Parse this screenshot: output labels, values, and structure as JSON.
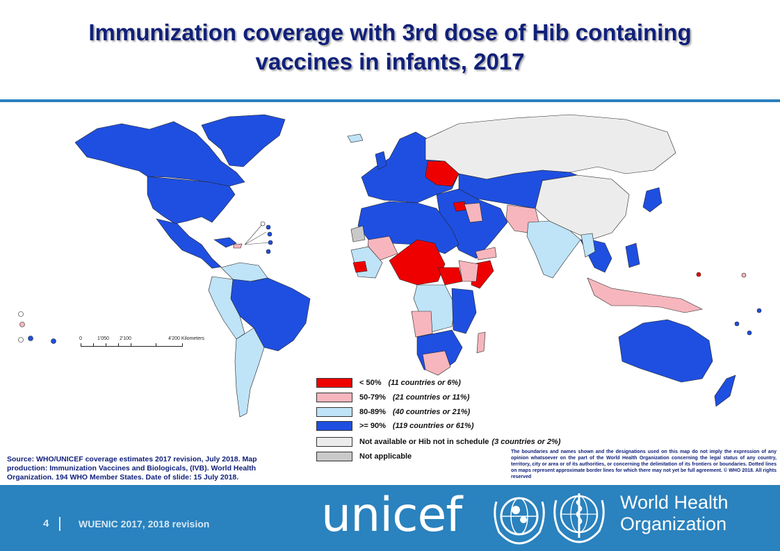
{
  "title": {
    "line1": "Immunization coverage with 3rd dose of Hib containing",
    "line2": "vaccines in infants, 2017"
  },
  "scale_bar": {
    "labels": [
      "0",
      "1'050",
      "2'100",
      "4'200 Kilometers"
    ]
  },
  "colors": {
    "lt50": "#ee0000",
    "r50_79": "#f7b6bd",
    "r80_89": "#bfe3f7",
    "ge90": "#1f4fe0",
    "not_available": "#ececec",
    "not_applicable": "#c9c9c9",
    "ocean": "#ffffff",
    "title": "#10207a",
    "footer": "#2a82be"
  },
  "legend": [
    {
      "key": "lt50",
      "label": "< 50%",
      "note": "(11 countries  or 6%)"
    },
    {
      "key": "r50_79",
      "label": "50-79%",
      "note": "(21 countries  or 11%)"
    },
    {
      "key": "r80_89",
      "label": "80-89%",
      "note": "(40 countries  or 21%)"
    },
    {
      "key": "ge90",
      "label": ">= 90%",
      "note": "(119 countries  or 61%)"
    },
    {
      "key": "not_available",
      "label": "Not available or Hib not in schedule",
      "note": "(3 countries or 2%)"
    },
    {
      "key": "not_applicable",
      "label": "Not applicable",
      "note": ""
    }
  ],
  "source_text": "Source: WHO/UNICEF   coverage estimates 2017 revision, July 2018. Map production:  Immunization Vaccines and Biologicals, (IVB). World Health Organization.  194 WHO Member States. Date of slide:  15 July  2018.",
  "disclaimer_text": "The boundaries and names shown and the designations used on this map do not imply the expression of any opinion whatsoever on the part of the World Health Organization concerning the legal status of any country, territory, city or area or of its authorities, or concerning the delimitation of its frontiers or boundaries.  Dotted lines on maps represent approximate border lines for which there may not yet be full agreement. © WHO 2018. All rights reserved",
  "footer": {
    "slide_number": "4",
    "text": "WUENIC 2017, 2018 revision",
    "unicef_logo_text": "unicef",
    "who_line1": "World Health",
    "who_line2": "Organization"
  }
}
